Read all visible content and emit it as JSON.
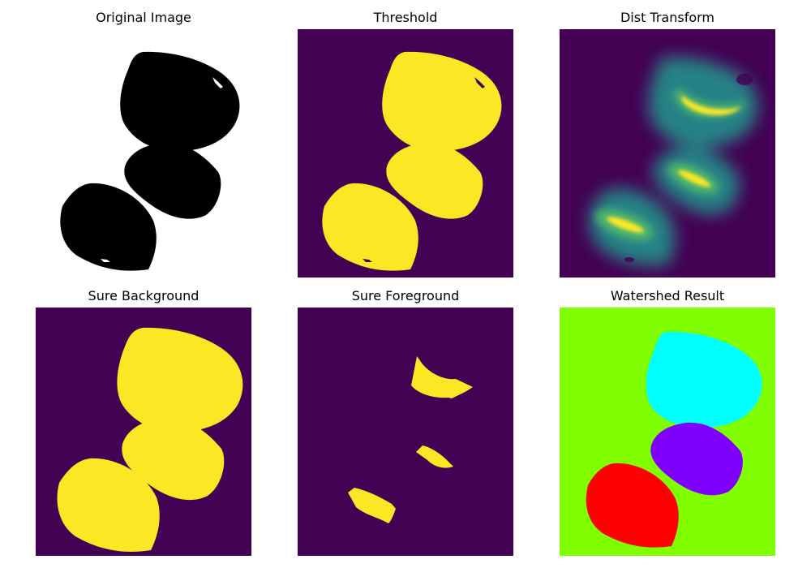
{
  "titles": {
    "original": "Original Image",
    "threshold": "Threshold",
    "dist": "Dist Transform",
    "sure_bg": "Sure Background",
    "sure_fg": "Sure Foreground",
    "watershed": "Watershed Result"
  },
  "colors": {
    "viridis_low": "#440154",
    "viridis_high": "#fde725",
    "viridis_mid": "#21918c",
    "viridis_midhigh": "#5ec962",
    "black": "#000000",
    "white": "#ffffff",
    "watershed_background": "#80ff00",
    "watershed_top": "#00ffff",
    "watershed_middle": "#8000ff",
    "watershed_bottom": "#ff0000"
  }
}
